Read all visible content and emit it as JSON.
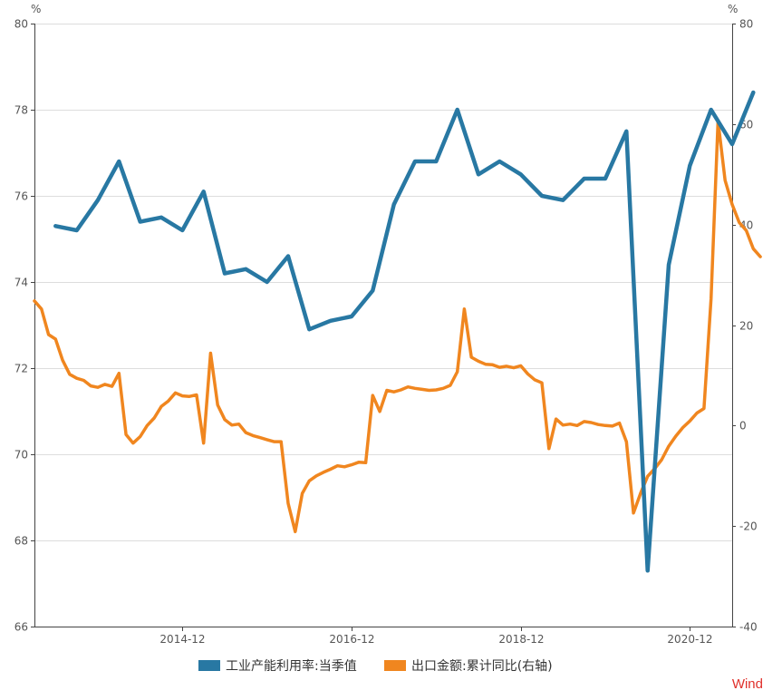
{
  "chart_data": {
    "type": "line",
    "left_axis": {
      "unit": "%",
      "ylim": [
        66,
        80
      ],
      "ticks": [
        "66",
        "68",
        "70",
        "72",
        "74",
        "76",
        "78",
        "80"
      ]
    },
    "right_axis": {
      "unit": "%",
      "ylim": [
        -40,
        80
      ],
      "ticks": [
        "-40",
        "-20",
        "0",
        "20",
        "40",
        "60",
        "80"
      ]
    },
    "x_ticks": [
      {
        "label": "2014-12",
        "x": "2014-12"
      },
      {
        "label": "2016-12",
        "x": "2016-12"
      },
      {
        "label": "2018-12",
        "x": "2018-12"
      },
      {
        "label": "2020-12",
        "x": "2020-12"
      }
    ],
    "xlim": [
      "2013-03",
      "2021-06"
    ],
    "grid": "horizontal",
    "legend": "bottom-center",
    "series": [
      {
        "name": "工业产能利用率:当季值",
        "axis": "left",
        "color": "#2878a3",
        "points": [
          [
            "2013-06",
            75.3
          ],
          [
            "2013-09",
            75.2
          ],
          [
            "2013-12",
            75.9
          ],
          [
            "2014-03",
            76.8
          ],
          [
            "2014-06",
            75.4
          ],
          [
            "2014-09",
            75.5
          ],
          [
            "2014-12",
            75.2
          ],
          [
            "2015-03",
            76.1
          ],
          [
            "2015-06",
            74.2
          ],
          [
            "2015-09",
            74.3
          ],
          [
            "2015-12",
            74.0
          ],
          [
            "2016-03",
            74.6
          ],
          [
            "2016-06",
            72.9
          ],
          [
            "2016-09",
            73.1
          ],
          [
            "2016-12",
            73.2
          ],
          [
            "2017-03",
            73.8
          ],
          [
            "2017-06",
            75.8
          ],
          [
            "2017-09",
            76.8
          ],
          [
            "2017-12",
            76.8
          ],
          [
            "2018-03",
            78.0
          ],
          [
            "2018-06",
            76.5
          ],
          [
            "2018-09",
            76.8
          ],
          [
            "2018-12",
            76.5
          ],
          [
            "2019-03",
            76.0
          ],
          [
            "2019-06",
            75.9
          ],
          [
            "2019-09",
            76.4
          ],
          [
            "2019-12",
            76.4
          ],
          [
            "2020-03",
            77.5
          ],
          [
            "2020-06",
            67.3
          ],
          [
            "2020-09",
            74.4
          ],
          [
            "2020-12",
            76.7
          ],
          [
            "2021-03",
            78.0
          ],
          [
            "2021-06",
            77.2
          ],
          [
            "2021-09",
            78.4
          ]
        ]
      },
      {
        "name": "出口金额:累计同比(右轴)",
        "axis": "right",
        "color": "#f0861f",
        "points": [
          [
            "2013-03",
            24.8
          ],
          [
            "2013-04",
            23.2
          ],
          [
            "2013-05",
            18.1
          ],
          [
            "2013-06",
            17.2
          ],
          [
            "2013-07",
            13.0
          ],
          [
            "2013-08",
            10.2
          ],
          [
            "2013-09",
            9.4
          ],
          [
            "2013-10",
            9.0
          ],
          [
            "2013-11",
            7.9
          ],
          [
            "2013-12",
            7.6
          ],
          [
            "2014-01",
            8.2
          ],
          [
            "2014-02",
            7.8
          ],
          [
            "2014-03",
            10.4
          ],
          [
            "2014-04",
            -1.8
          ],
          [
            "2014-05",
            -3.5
          ],
          [
            "2014-06",
            -2.2
          ],
          [
            "2014-07",
            0.0
          ],
          [
            "2014-08",
            1.5
          ],
          [
            "2014-09",
            3.8
          ],
          [
            "2014-10",
            4.9
          ],
          [
            "2014-11",
            6.5
          ],
          [
            "2014-12",
            5.9
          ],
          [
            "2015-01",
            5.8
          ],
          [
            "2015-02",
            6.1
          ],
          [
            "2015-03",
            -3.5
          ],
          [
            "2015-04",
            14.4
          ],
          [
            "2015-05",
            4.1
          ],
          [
            "2015-06",
            1.2
          ],
          [
            "2015-07",
            0.1
          ],
          [
            "2015-08",
            0.3
          ],
          [
            "2015-09",
            -1.4
          ],
          [
            "2015-10",
            -2.0
          ],
          [
            "2015-11",
            -2.4
          ],
          [
            "2015-12",
            -2.8
          ],
          [
            "2016-01",
            -3.2
          ],
          [
            "2016-02",
            -3.2
          ],
          [
            "2016-03",
            -15.5
          ],
          [
            "2016-04",
            -21.1
          ],
          [
            "2016-05",
            -13.5
          ],
          [
            "2016-06",
            -11.0
          ],
          [
            "2016-07",
            -10.0
          ],
          [
            "2016-08",
            -9.3
          ],
          [
            "2016-09",
            -8.7
          ],
          [
            "2016-10",
            -8.0
          ],
          [
            "2016-11",
            -8.2
          ],
          [
            "2016-12",
            -7.8
          ],
          [
            "2017-01",
            -7.3
          ],
          [
            "2017-02",
            -7.4
          ],
          [
            "2017-03",
            6.0
          ],
          [
            "2017-04",
            2.8
          ],
          [
            "2017-05",
            7.0
          ],
          [
            "2017-06",
            6.7
          ],
          [
            "2017-07",
            7.1
          ],
          [
            "2017-08",
            7.7
          ],
          [
            "2017-09",
            7.4
          ],
          [
            "2017-10",
            7.2
          ],
          [
            "2017-11",
            7.0
          ],
          [
            "2017-12",
            7.1
          ],
          [
            "2018-01",
            7.4
          ],
          [
            "2018-02",
            8.0
          ],
          [
            "2018-03",
            10.7
          ],
          [
            "2018-04",
            23.2
          ],
          [
            "2018-05",
            13.6
          ],
          [
            "2018-06",
            12.8
          ],
          [
            "2018-07",
            12.2
          ],
          [
            "2018-08",
            12.1
          ],
          [
            "2018-09",
            11.6
          ],
          [
            "2018-10",
            11.8
          ],
          [
            "2018-11",
            11.5
          ],
          [
            "2018-12",
            11.9
          ],
          [
            "2019-01",
            10.3
          ],
          [
            "2019-02",
            9.1
          ],
          [
            "2019-03",
            8.5
          ],
          [
            "2019-04",
            -4.6
          ],
          [
            "2019-05",
            1.3
          ],
          [
            "2019-06",
            0.1
          ],
          [
            "2019-07",
            0.3
          ],
          [
            "2019-08",
            0.0
          ],
          [
            "2019-09",
            0.8
          ],
          [
            "2019-10",
            0.6
          ],
          [
            "2019-11",
            0.2
          ],
          [
            "2019-12",
            0.0
          ],
          [
            "2020-01",
            -0.1
          ],
          [
            "2020-02",
            0.5
          ],
          [
            "2020-03",
            -3.2
          ],
          [
            "2020-04",
            -17.4
          ],
          [
            "2020-05",
            -13.5
          ],
          [
            "2020-06",
            -10.1
          ],
          [
            "2020-07",
            -8.6
          ],
          [
            "2020-08",
            -6.8
          ],
          [
            "2020-09",
            -4.1
          ],
          [
            "2020-10",
            -2.1
          ],
          [
            "2020-11",
            -0.4
          ],
          [
            "2020-12",
            0.9
          ],
          [
            "2021-01",
            2.5
          ],
          [
            "2021-02",
            3.4
          ],
          [
            "2021-03",
            25.2
          ],
          [
            "2021-04",
            60.6
          ],
          [
            "2021-05",
            48.8
          ],
          [
            "2021-06",
            44.0
          ],
          [
            "2021-07",
            40.4
          ],
          [
            "2021-08",
            38.8
          ],
          [
            "2021-09",
            35.2
          ],
          [
            "2021-10",
            33.6
          ]
        ]
      }
    ]
  },
  "brand": "Wind"
}
